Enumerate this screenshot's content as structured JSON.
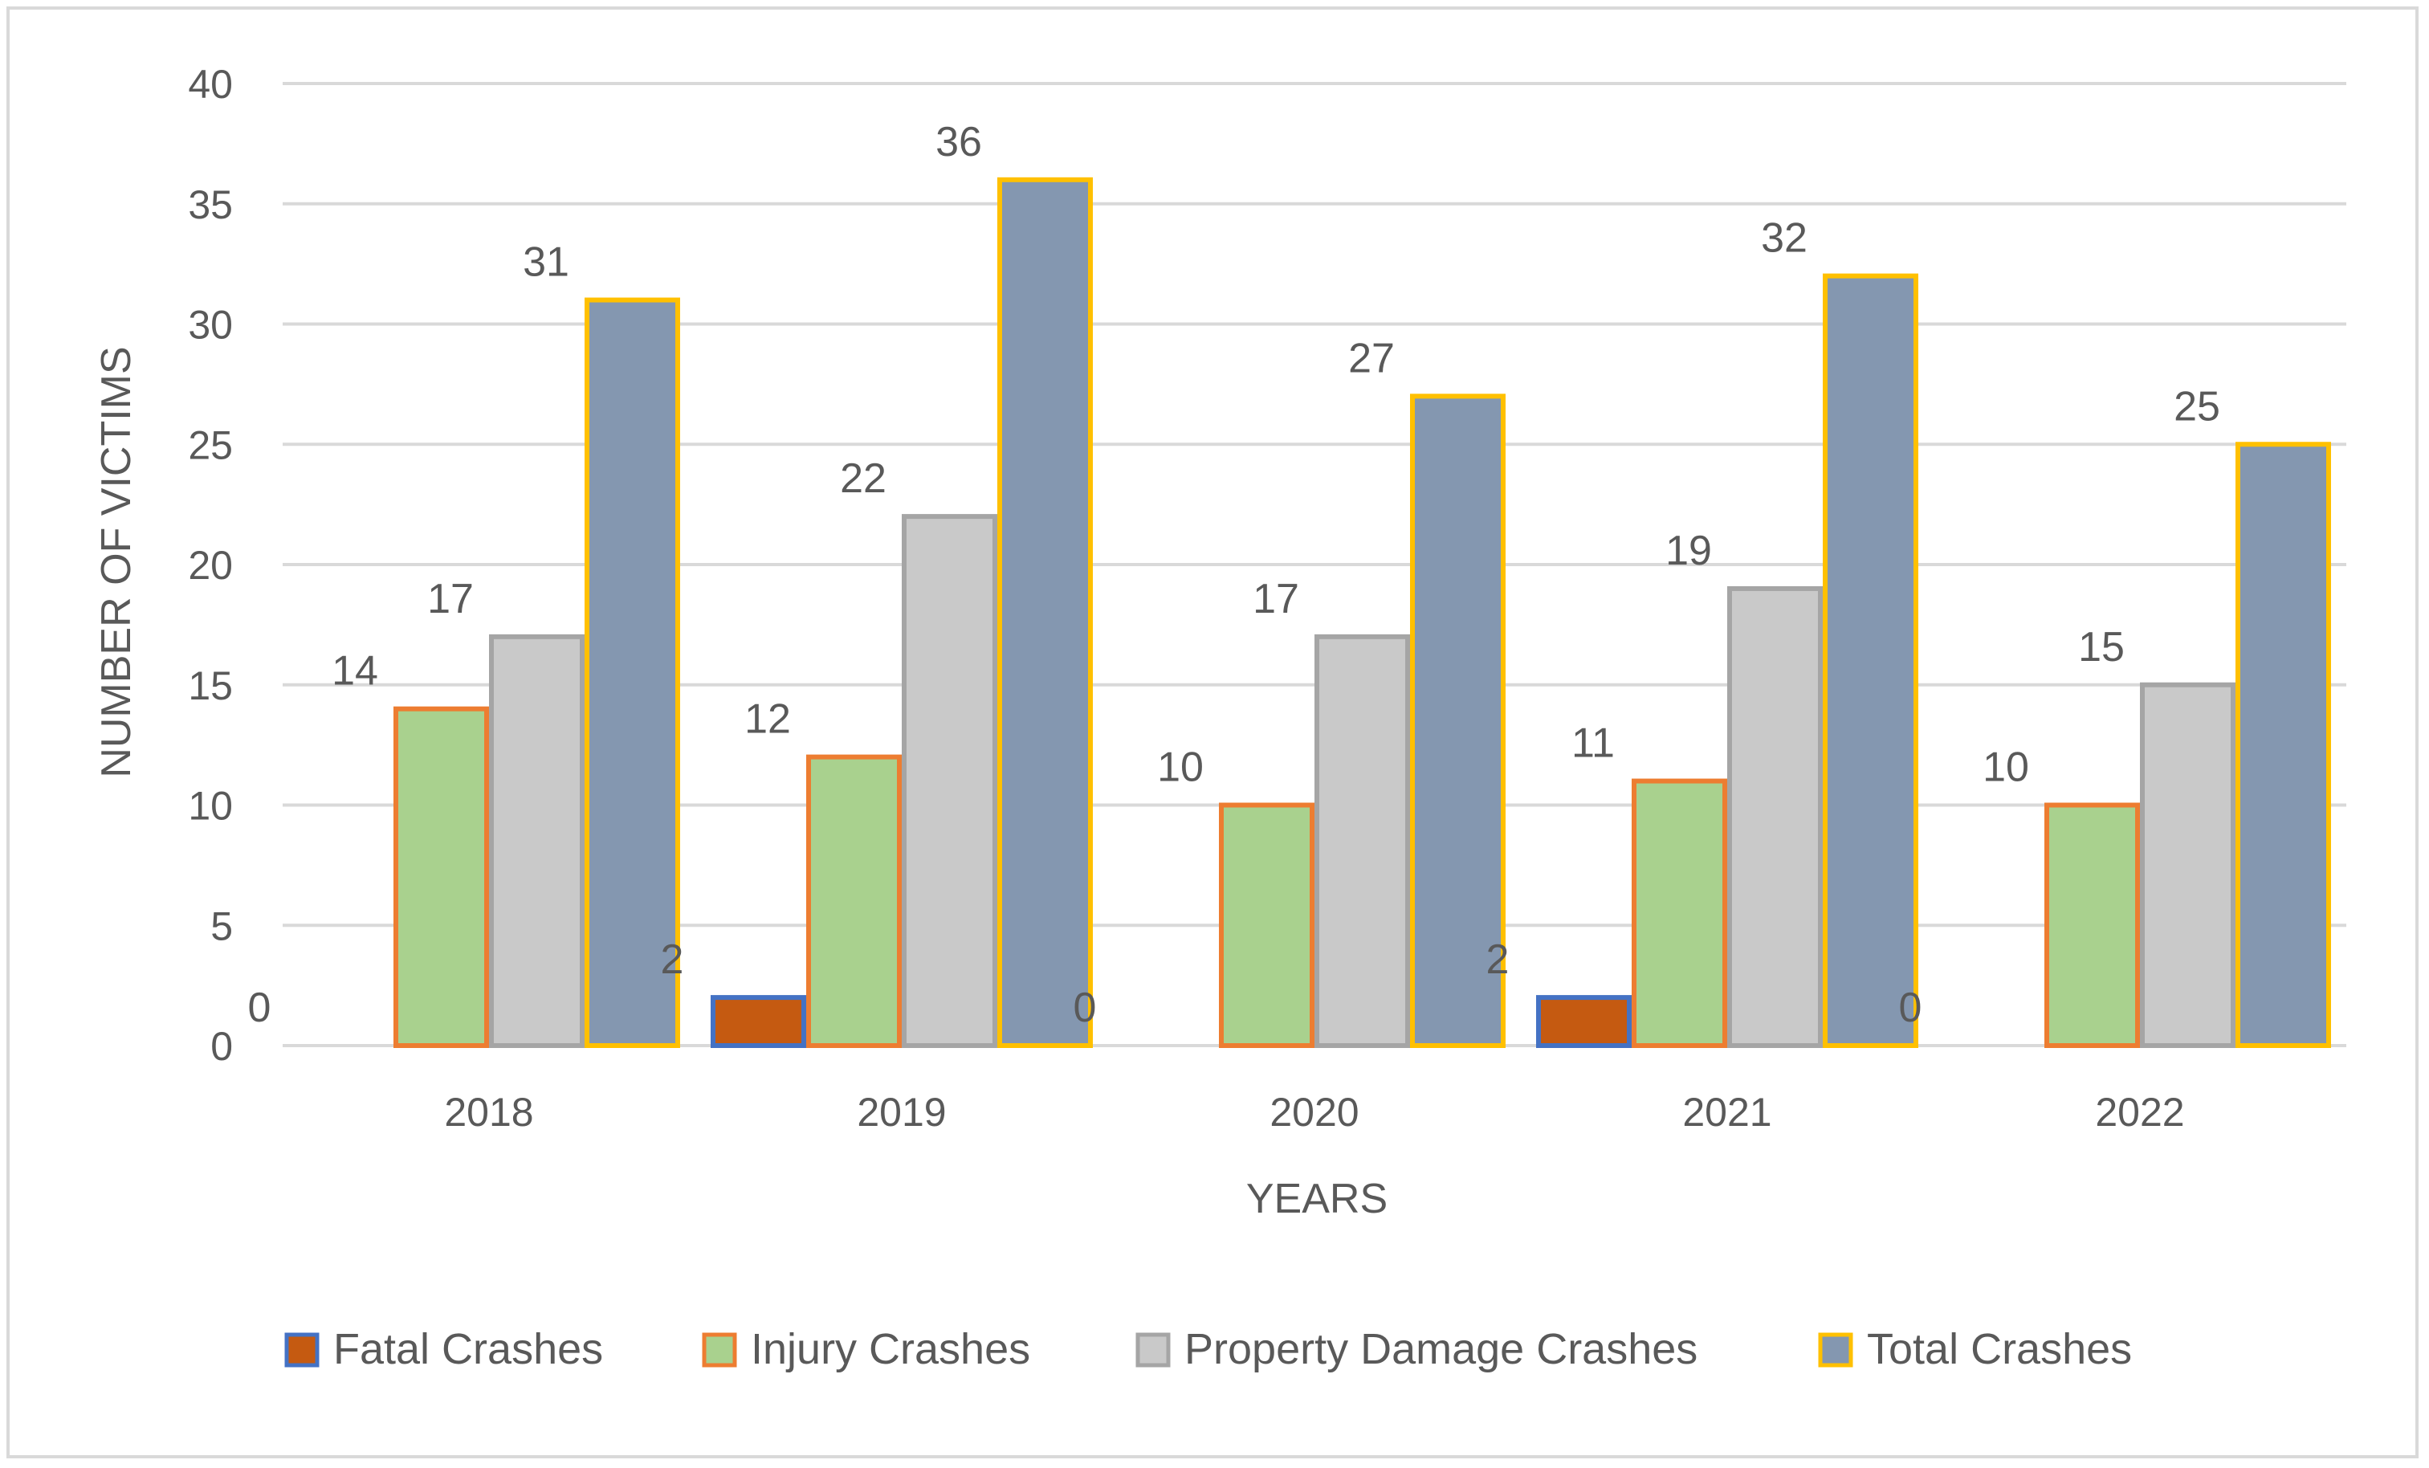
{
  "chart_data": {
    "type": "bar",
    "title": "",
    "xlabel": "YEARS",
    "ylabel": "NUMBER OF VICTIMS",
    "ylim": [
      0,
      40
    ],
    "yticks": [
      "0",
      "5",
      "10",
      "15",
      "20",
      "25",
      "30",
      "35",
      "40"
    ],
    "grid": true,
    "legend_position": "bottom",
    "categories": [
      "2018",
      "2019",
      "2020",
      "2021",
      "2022"
    ],
    "series": [
      {
        "name": "Fatal Crashes",
        "values": [
          0,
          2,
          0,
          2,
          0
        ],
        "fill": "#c55a11",
        "stroke": "#4472c4"
      },
      {
        "name": "Injury Crashes",
        "values": [
          14,
          12,
          10,
          11,
          10
        ],
        "fill": "#a9d18e",
        "stroke": "#ed7d31"
      },
      {
        "name": "Property Damage Crashes",
        "values": [
          17,
          22,
          17,
          19,
          15
        ],
        "fill": "#c9c9c9",
        "stroke": "#a5a5a5"
      },
      {
        "name": "Total Crashes",
        "values": [
          31,
          36,
          27,
          32,
          25
        ],
        "fill": "#8497b0",
        "stroke": "#ffc000"
      }
    ]
  }
}
